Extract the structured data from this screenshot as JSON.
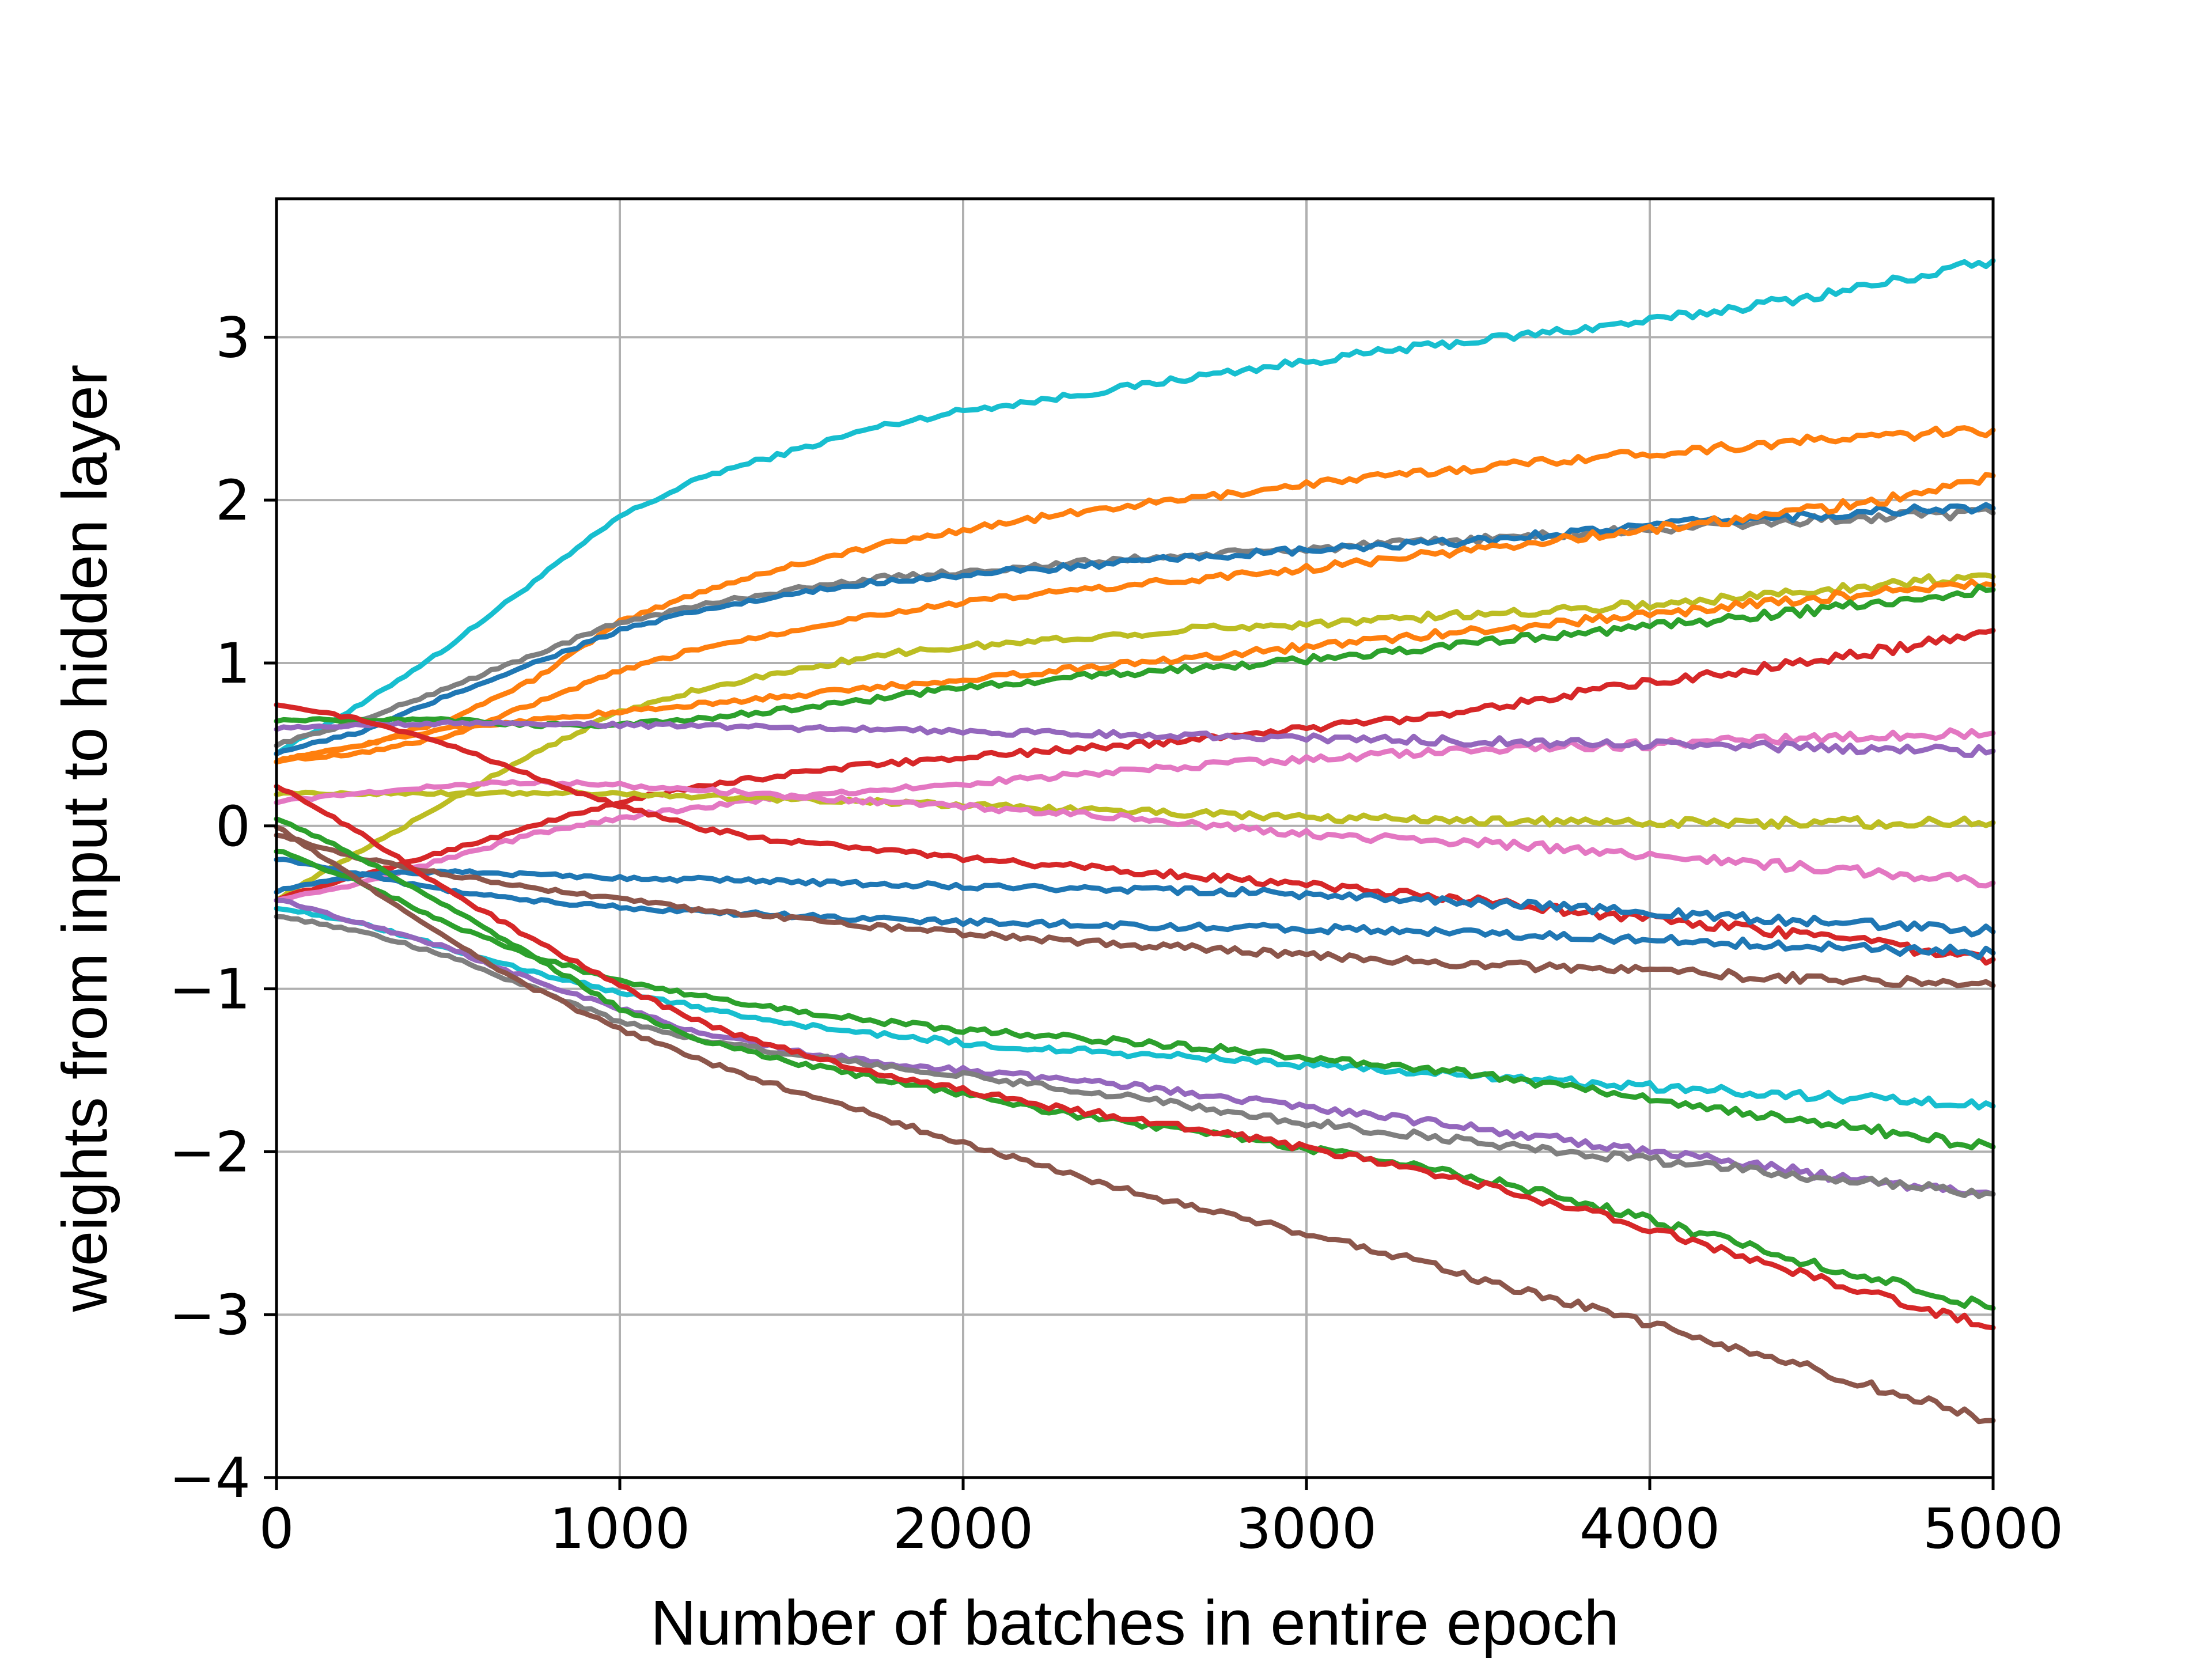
{
  "chart_data": {
    "type": "line",
    "title": "",
    "xlabel": "Number of batches in entire epoch",
    "ylabel": "weights from input to hidden layer",
    "xlim": [
      0,
      5000
    ],
    "ylim": [
      -4,
      3.85
    ],
    "xticks": [
      0,
      1000,
      2000,
      3000,
      4000,
      5000
    ],
    "xtick_labels": [
      "0",
      "1000",
      "2000",
      "3000",
      "4000",
      "5000"
    ],
    "yticks": [
      -4,
      -3,
      -2,
      -1,
      0,
      1,
      2,
      3
    ],
    "ytick_labels": [
      "−4",
      "−3",
      "−2",
      "−1",
      "0",
      "1",
      "2",
      "3"
    ],
    "grid": true,
    "legend": false,
    "x": [
      0,
      250,
      500,
      750,
      1000,
      1250,
      1500,
      1750,
      2000,
      2250,
      2500,
      2750,
      3000,
      3250,
      3500,
      3750,
      4000,
      4250,
      4500,
      4750,
      5000
    ],
    "series": [
      {
        "color": "#17becf",
        "values": [
          0.45,
          0.75,
          1.1,
          1.5,
          1.9,
          2.15,
          2.3,
          2.45,
          2.55,
          2.62,
          2.7,
          2.78,
          2.85,
          2.92,
          2.98,
          3.04,
          3.1,
          3.18,
          3.26,
          3.36,
          3.47
        ]
      },
      {
        "color": "#ff7f0e",
        "values": [
          0.4,
          0.5,
          0.65,
          0.9,
          1.25,
          1.45,
          1.6,
          1.72,
          1.82,
          1.9,
          1.97,
          2.03,
          2.1,
          2.15,
          2.2,
          2.25,
          2.29,
          2.33,
          2.37,
          2.4,
          2.43
        ]
      },
      {
        "color": "#7f7f7f",
        "values": [
          0.5,
          0.65,
          0.85,
          1.05,
          1.25,
          1.36,
          1.45,
          1.52,
          1.56,
          1.6,
          1.64,
          1.67,
          1.7,
          1.73,
          1.76,
          1.79,
          1.82,
          1.85,
          1.88,
          1.9,
          1.92
        ]
      },
      {
        "color": "#1f77b4",
        "values": [
          0.45,
          0.58,
          0.8,
          1.0,
          1.2,
          1.33,
          1.42,
          1.5,
          1.54,
          1.58,
          1.62,
          1.66,
          1.69,
          1.72,
          1.75,
          1.8,
          1.84,
          1.88,
          1.91,
          1.94,
          1.95
        ]
      },
      {
        "color": "#ff7f0e",
        "values": [
          0.4,
          0.45,
          0.55,
          0.75,
          0.95,
          1.1,
          1.2,
          1.3,
          1.37,
          1.43,
          1.48,
          1.53,
          1.58,
          1.64,
          1.7,
          1.76,
          1.82,
          1.88,
          1.95,
          2.02,
          2.15
        ]
      },
      {
        "color": "#bcbd22",
        "values": [
          -0.45,
          -0.15,
          0.15,
          0.45,
          0.7,
          0.85,
          0.95,
          1.05,
          1.1,
          1.14,
          1.18,
          1.22,
          1.24,
          1.27,
          1.3,
          1.33,
          1.36,
          1.4,
          1.45,
          1.5,
          1.53
        ]
      },
      {
        "color": "#ff7f0e",
        "values": [
          0.4,
          0.5,
          0.6,
          0.65,
          0.7,
          0.75,
          0.8,
          0.85,
          0.9,
          0.95,
          1.0,
          1.05,
          1.1,
          1.15,
          1.2,
          1.25,
          1.3,
          1.35,
          1.4,
          1.45,
          1.48
        ]
      },
      {
        "color": "#2ca02c",
        "values": [
          0.65,
          0.65,
          0.65,
          0.62,
          0.62,
          0.66,
          0.72,
          0.78,
          0.85,
          0.9,
          0.94,
          0.98,
          1.02,
          1.07,
          1.12,
          1.18,
          1.22,
          1.28,
          1.33,
          1.38,
          1.45
        ]
      },
      {
        "color": "#d62728",
        "values": [
          -0.45,
          -0.3,
          -0.15,
          0.0,
          0.15,
          0.25,
          0.32,
          0.38,
          0.42,
          0.46,
          0.5,
          0.55,
          0.6,
          0.65,
          0.72,
          0.8,
          0.88,
          0.95,
          1.02,
          1.1,
          1.2
        ]
      },
      {
        "color": "#e377c2",
        "values": [
          -0.45,
          -0.35,
          -0.2,
          -0.05,
          0.05,
          0.12,
          0.18,
          0.22,
          0.26,
          0.3,
          0.34,
          0.38,
          0.41,
          0.44,
          0.47,
          0.49,
          0.5,
          0.52,
          0.54,
          0.56,
          0.57
        ]
      },
      {
        "color": "#9467bd",
        "values": [
          0.6,
          0.62,
          0.63,
          0.63,
          0.62,
          0.61,
          0.6,
          0.59,
          0.58,
          0.57,
          0.56,
          0.55,
          0.54,
          0.53,
          0.52,
          0.51,
          0.5,
          0.49,
          0.48,
          0.47,
          0.46
        ]
      },
      {
        "color": "#bcbd22",
        "values": [
          0.2,
          0.2,
          0.2,
          0.2,
          0.2,
          0.18,
          0.16,
          0.15,
          0.13,
          0.11,
          0.09,
          0.07,
          0.05,
          0.04,
          0.03,
          0.03,
          0.02,
          0.02,
          0.02,
          0.02,
          0.02
        ]
      },
      {
        "color": "#e377c2",
        "values": [
          0.15,
          0.2,
          0.25,
          0.27,
          0.25,
          0.22,
          0.18,
          0.15,
          0.12,
          0.08,
          0.05,
          0.0,
          -0.05,
          -0.08,
          -0.1,
          -0.14,
          -0.18,
          -0.22,
          -0.26,
          -0.3,
          -0.35
        ]
      },
      {
        "color": "#d62728",
        "values": [
          0.75,
          0.65,
          0.5,
          0.3,
          0.12,
          -0.02,
          -0.1,
          -0.15,
          -0.2,
          -0.24,
          -0.28,
          -0.32,
          -0.36,
          -0.41,
          -0.46,
          -0.52,
          -0.57,
          -0.62,
          -0.68,
          -0.75,
          -0.82
        ]
      },
      {
        "color": "#1f77b4",
        "values": [
          -0.4,
          -0.3,
          -0.28,
          -0.3,
          -0.32,
          -0.33,
          -0.34,
          -0.36,
          -0.37,
          -0.38,
          -0.39,
          -0.4,
          -0.42,
          -0.44,
          -0.47,
          -0.5,
          -0.53,
          -0.56,
          -0.59,
          -0.62,
          -0.65
        ]
      },
      {
        "color": "#1f77b4",
        "values": [
          -0.2,
          -0.3,
          -0.4,
          -0.46,
          -0.5,
          -0.53,
          -0.55,
          -0.57,
          -0.59,
          -0.6,
          -0.61,
          -0.62,
          -0.63,
          -0.64,
          -0.66,
          -0.68,
          -0.7,
          -0.72,
          -0.74,
          -0.76,
          -0.78
        ]
      },
      {
        "color": "#8c564b",
        "values": [
          -0.05,
          -0.2,
          -0.3,
          -0.38,
          -0.45,
          -0.52,
          -0.57,
          -0.62,
          -0.66,
          -0.7,
          -0.73,
          -0.76,
          -0.79,
          -0.82,
          -0.85,
          -0.87,
          -0.89,
          -0.92,
          -0.94,
          -0.96,
          -0.98
        ]
      },
      {
        "color": "#17becf",
        "values": [
          -0.5,
          -0.6,
          -0.75,
          -0.9,
          -1.02,
          -1.12,
          -1.22,
          -1.28,
          -1.33,
          -1.37,
          -1.4,
          -1.43,
          -1.47,
          -1.5,
          -1.54,
          -1.57,
          -1.6,
          -1.63,
          -1.66,
          -1.69,
          -1.72
        ]
      },
      {
        "color": "#2ca02c",
        "values": [
          -0.15,
          -0.35,
          -0.6,
          -0.8,
          -0.95,
          -1.05,
          -1.13,
          -1.2,
          -1.25,
          -1.29,
          -1.33,
          -1.37,
          -1.42,
          -1.47,
          -1.53,
          -1.6,
          -1.67,
          -1.75,
          -1.82,
          -1.9,
          -1.97
        ]
      },
      {
        "color": "#9467bd",
        "values": [
          -0.45,
          -0.6,
          -0.75,
          -0.95,
          -1.12,
          -1.28,
          -1.38,
          -1.45,
          -1.5,
          -1.55,
          -1.6,
          -1.66,
          -1.73,
          -1.79,
          -1.86,
          -1.93,
          -2.0,
          -2.07,
          -2.14,
          -2.2,
          -2.26
        ]
      },
      {
        "color": "#7f7f7f",
        "values": [
          -0.55,
          -0.65,
          -0.8,
          -1.0,
          -1.2,
          -1.32,
          -1.4,
          -1.47,
          -1.53,
          -1.6,
          -1.67,
          -1.75,
          -1.82,
          -1.88,
          -1.94,
          -2.0,
          -2.05,
          -2.1,
          -2.16,
          -2.21,
          -2.26
        ]
      },
      {
        "color": "#2ca02c",
        "values": [
          0.05,
          -0.2,
          -0.5,
          -0.8,
          -1.12,
          -1.32,
          -1.45,
          -1.55,
          -1.65,
          -1.75,
          -1.83,
          -1.9,
          -1.98,
          -2.06,
          -2.16,
          -2.28,
          -2.42,
          -2.56,
          -2.7,
          -2.83,
          -2.96
        ]
      },
      {
        "color": "#d62728",
        "values": [
          0.25,
          -0.05,
          -0.4,
          -0.7,
          -0.98,
          -1.22,
          -1.38,
          -1.52,
          -1.62,
          -1.72,
          -1.8,
          -1.88,
          -1.98,
          -2.08,
          -2.2,
          -2.33,
          -2.47,
          -2.62,
          -2.78,
          -2.93,
          -3.08
        ]
      },
      {
        "color": "#8c564b",
        "values": [
          0.0,
          -0.35,
          -0.7,
          -1.0,
          -1.25,
          -1.45,
          -1.62,
          -1.78,
          -1.95,
          -2.1,
          -2.25,
          -2.38,
          -2.5,
          -2.63,
          -2.78,
          -2.92,
          -3.06,
          -3.2,
          -3.35,
          -3.5,
          -3.65
        ]
      }
    ]
  }
}
